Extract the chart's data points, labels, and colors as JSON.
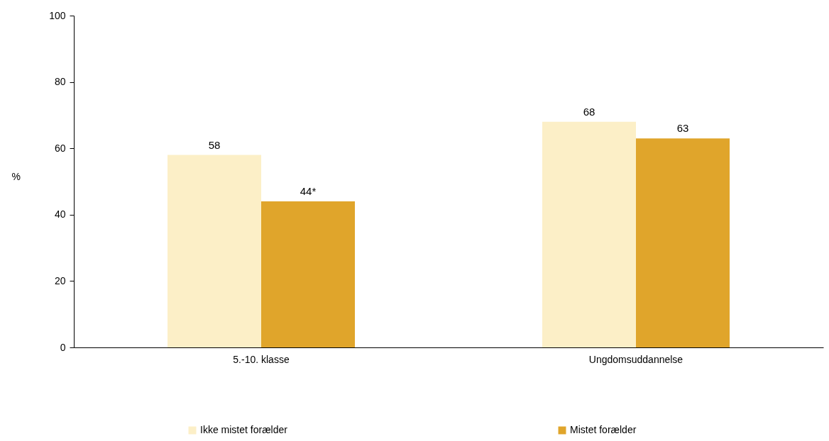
{
  "chart_data": {
    "type": "bar",
    "ylabel": "%",
    "categories": [
      "5.-10. klasse",
      "Ungdomsuddannelse"
    ],
    "series": [
      {
        "name": "Ikke mistet forælder",
        "color": "#fcefc7",
        "values": [
          58,
          68
        ],
        "value_labels": [
          "58",
          "68"
        ]
      },
      {
        "name": "Mistet forælder",
        "color": "#e0a52b",
        "values": [
          44,
          63
        ],
        "value_labels": [
          "44*",
          "63"
        ]
      }
    ],
    "ylim": [
      0,
      100
    ],
    "yticks": [
      0,
      20,
      40,
      60,
      80,
      100
    ],
    "grid": false,
    "legend": "bottom"
  }
}
